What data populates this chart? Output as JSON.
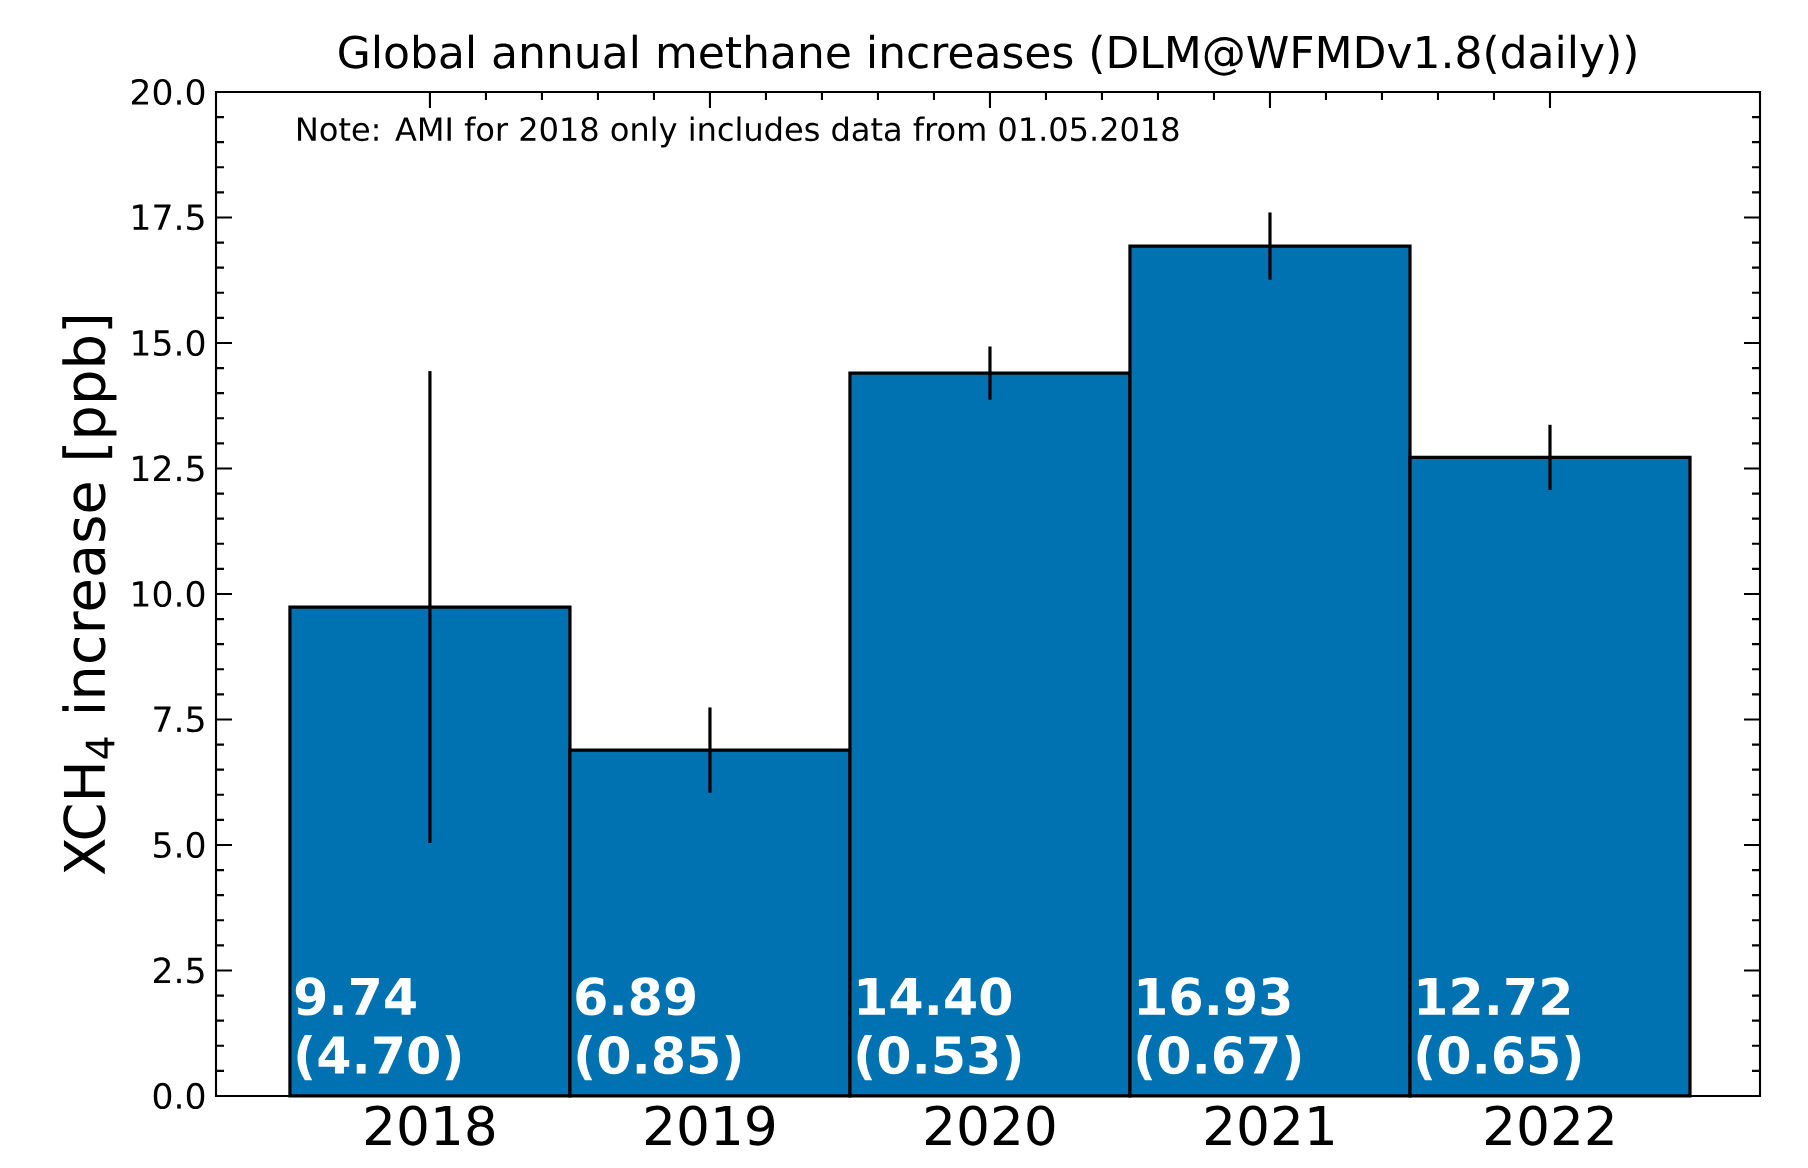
{
  "chart_data": {
    "type": "bar",
    "title": "Global annual methane increases (DLM@WFMDv1.8(daily))",
    "ylabel": "XCH$_{4}$ increase [ppb]",
    "annotations": [
      "Note: AMI for 2018 only includes data from 01.05.2018"
    ],
    "categories": [
      "2018",
      "2019",
      "2020",
      "2021",
      "2022"
    ],
    "values": [
      9.74,
      6.89,
      14.4,
      16.93,
      12.72
    ],
    "errors": [
      4.7,
      0.85,
      0.53,
      0.67,
      0.65
    ],
    "value_labels": [
      "9.74 (4.70)",
      "6.89 (0.85)",
      "14.40 (0.53)",
      "16.93 (0.67)",
      "12.72 (0.65)"
    ],
    "color": "#0072b2",
    "ylim": [
      0,
      20
    ],
    "yticks": [
      {
        "value": 0,
        "label": "0.0"
      },
      {
        "value": 2.5,
        "label": "2.5"
      },
      {
        "value": 5,
        "label": "5.0"
      },
      {
        "value": 7.5,
        "label": "7.5"
      },
      {
        "value": 10,
        "label": "10.0"
      },
      {
        "value": 12.5,
        "label": "12.5"
      },
      {
        "value": 15,
        "label": "15.0"
      },
      {
        "value": 17.5,
        "label": "17.5"
      },
      {
        "value": 20,
        "label": "20.0"
      }
    ],
    "grid": false
  }
}
